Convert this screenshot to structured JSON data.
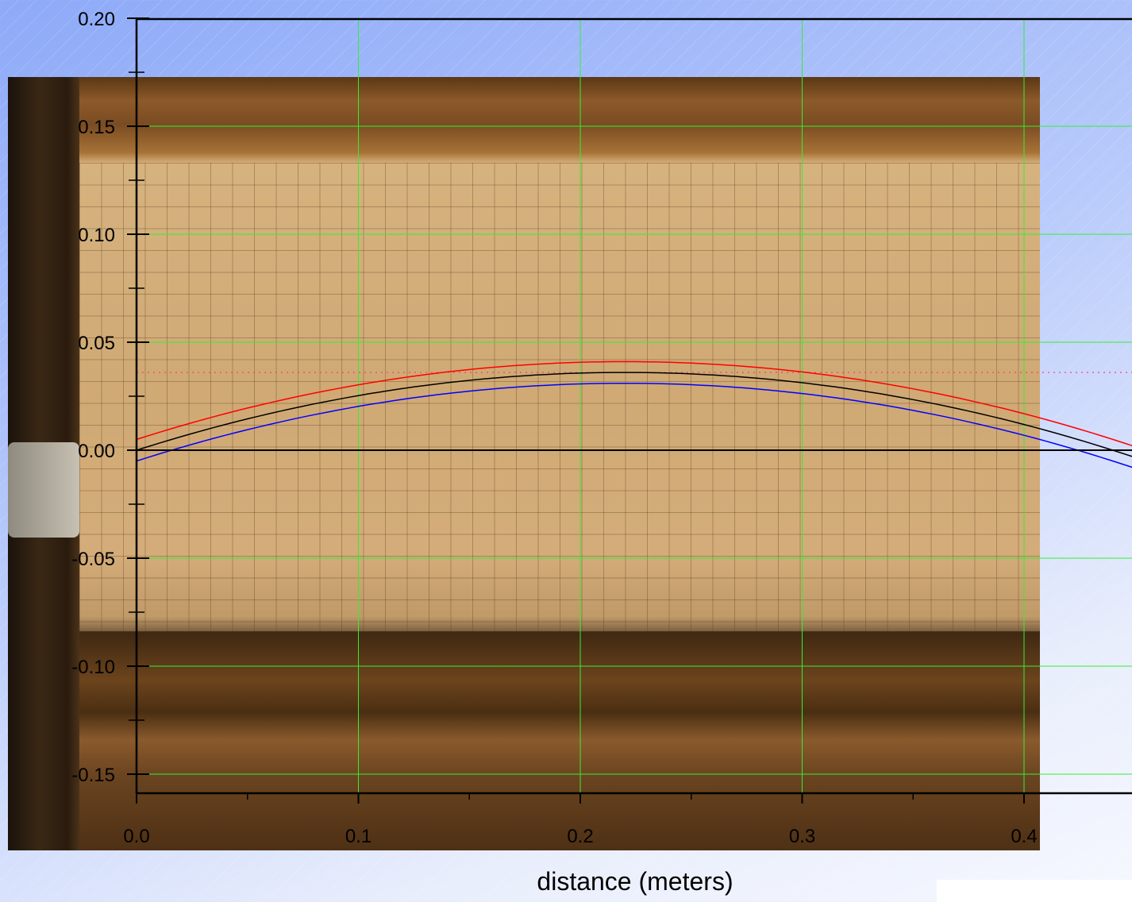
{
  "chart_data": {
    "type": "line",
    "title": "",
    "xlabel": "distance (meters)",
    "ylabel": "",
    "xlim": [
      0.0,
      0.45
    ],
    "ylim": [
      -0.155,
      0.2
    ],
    "x_ticks": [
      "0.0",
      "0.1",
      "0.2",
      "0.3",
      "0.4"
    ],
    "y_ticks": [
      "0.20",
      "0.15",
      "0.10",
      "0.05",
      "0.00",
      "-0.05",
      "-0.10",
      "-0.15"
    ],
    "grid": true,
    "background": "photograph of a water stream in front of graph paper",
    "series": [
      {
        "color": "#ff0000",
        "peak_x": 0.22,
        "peak_y": 0.041,
        "y0": 0.005,
        "x": [
          0.0,
          0.05,
          0.1,
          0.15,
          0.2,
          0.22,
          0.25,
          0.3,
          0.35,
          0.4,
          0.45
        ],
        "y": [
          0.005,
          0.018,
          0.029,
          0.037,
          0.041,
          0.041,
          0.04,
          0.035,
          0.026,
          0.013,
          -0.003
        ]
      },
      {
        "color": "#000000",
        "peak_x": 0.22,
        "peak_y": 0.036,
        "y0": 0.0,
        "x": [
          0.0,
          0.05,
          0.1,
          0.15,
          0.2,
          0.22,
          0.25,
          0.3,
          0.35,
          0.4,
          0.45
        ],
        "y": [
          0.0,
          0.013,
          0.024,
          0.032,
          0.036,
          0.036,
          0.035,
          0.03,
          0.021,
          0.008,
          -0.008
        ]
      },
      {
        "color": "#0000ff",
        "peak_x": 0.22,
        "peak_y": 0.031,
        "y0": -0.005,
        "x": [
          0.0,
          0.05,
          0.1,
          0.15,
          0.2,
          0.22,
          0.25,
          0.3,
          0.35,
          0.4,
          0.45
        ],
        "y": [
          -0.005,
          0.008,
          0.019,
          0.027,
          0.031,
          0.031,
          0.03,
          0.025,
          0.016,
          0.003,
          -0.013
        ]
      }
    ],
    "reference_line": {
      "y": 0.036,
      "style": "dotted",
      "color": "#ff3366"
    },
    "colors": {
      "grid": "#33ee33",
      "axis": "#000000"
    }
  }
}
